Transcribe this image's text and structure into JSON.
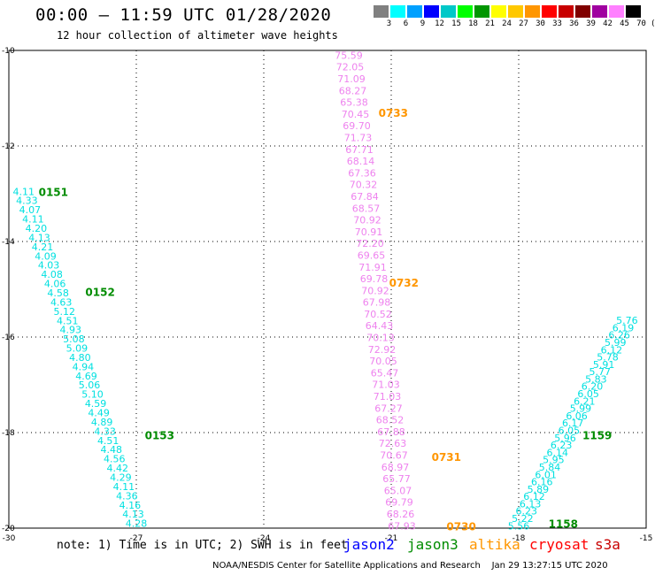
{
  "header": {
    "title": "00:00 – 11:59 UTC 01/28/2020",
    "subtitle": "12 hour collection of altimeter wave heights"
  },
  "legend": {
    "colors": [
      "#808080",
      "#00ffff",
      "#00a0ff",
      "#0000ff",
      "#00c8c8",
      "#00ff00",
      "#009600",
      "#ffff00",
      "#ffc800",
      "#ff9600",
      "#ff0000",
      "#c80000",
      "#800000",
      "#a000a0",
      "#ff80ff",
      "#000000"
    ],
    "labels": [
      "3",
      "6",
      "9",
      "12",
      "15",
      "18",
      "21",
      "24",
      "27",
      "30",
      "33",
      "36",
      "39",
      "42",
      "45",
      "70",
      "(ft)"
    ]
  },
  "footer": {
    "note": "note: 1) Time is in UTC; 2) SWH is in feet",
    "satellites": [
      {
        "name": "jason2",
        "color": "#0000ff"
      },
      {
        "name": "jason3",
        "color": "#008c00"
      },
      {
        "name": "altika",
        "color": "#ff9600"
      },
      {
        "name": "cryosat",
        "color": "#ff0000"
      },
      {
        "name": "s3a",
        "color": "#c80000"
      }
    ],
    "credit": "NOAA/NESDIS Center for Satellite Applications and Research    Jan 29 13:27:15 UTC 2020"
  },
  "chart_data": {
    "type": "scatter",
    "x_ticks": [
      "-30",
      "-27",
      "-24",
      "-21",
      "-18",
      "-15"
    ],
    "y_ticks": [
      "-10",
      "-12",
      "-14",
      "-16",
      "-18",
      "-20"
    ],
    "xlim": [
      -30,
      -15
    ],
    "ylim": [
      -20,
      -10
    ],
    "grid": true,
    "series": [
      {
        "name": "altika",
        "label_color": "#ee82ee",
        "start": [
          -22.0,
          -10.1
        ],
        "end": [
          -20.75,
          -19.95
        ],
        "values": [
          "75.59",
          "72.05",
          "71.09",
          "68.27",
          "65.38",
          "70.45",
          "69.70",
          "71.73",
          "67.71",
          "68.14",
          "67.36",
          "70.32",
          "67.84",
          "68.57",
          "70.92",
          "70.91",
          "72.20",
          "69.65",
          "71.91",
          "69.78",
          "70.92",
          "67.98",
          "70.52",
          "64.43",
          "70.13",
          "72.92",
          "70.05",
          "65.47",
          "71.03",
          "71.03",
          "67.27",
          "68.52",
          "67.88",
          "72.63",
          "70.67",
          "68.97",
          "65.77",
          "65.07",
          "69.79",
          "68.26",
          "67.93"
        ],
        "time_tags": [
          {
            "text": "0733",
            "lon": -21.3,
            "lat": -11.3
          },
          {
            "text": "0732",
            "lon": -21.05,
            "lat": -14.85
          },
          {
            "text": "0731",
            "lon": -20.05,
            "lat": -18.5
          },
          {
            "text": "0730",
            "lon": -19.7,
            "lat": -19.95
          }
        ],
        "time_color": "#ff9600"
      },
      {
        "name": "jason3",
        "label_color": "#00e0e0",
        "start": [
          -29.65,
          -12.95
        ],
        "end": [
          -27.0,
          -19.9
        ],
        "values": [
          "4.11",
          "4.33",
          "4.07",
          "4.11",
          "4.20",
          "4.13",
          "4.21",
          "4.09",
          "4.03",
          "4.08",
          "4.06",
          "4.58",
          "4.63",
          "5.12",
          "4.51",
          "4.93",
          "5.08",
          "5.09",
          "4.80",
          "4.94",
          "4.69",
          "5.06",
          "5.10",
          "4.59",
          "4.49",
          "4.89",
          "4.33",
          "4.51",
          "4.48",
          "4.56",
          "4.42",
          "4.29",
          "4.11",
          "4.36",
          "4.16",
          "4.13",
          "4.28"
        ],
        "time_tags": [
          {
            "text": "0151",
            "lon": -29.3,
            "lat": -12.95
          },
          {
            "text": "0152",
            "lon": -28.2,
            "lat": -15.05
          },
          {
            "text": "0153",
            "lon": -26.8,
            "lat": -18.05
          }
        ],
        "time_color": "#008c00"
      },
      {
        "name": "jason3",
        "label_color": "#00e0e0",
        "start": [
          -18.0,
          -19.95
        ],
        "end": [
          -15.45,
          -15.65
        ],
        "values": [
          "5.56",
          "5.22",
          "6.23",
          "6.13",
          "6.12",
          "5.89",
          "6.16",
          "6.01",
          "5.84",
          "5.95",
          "6.14",
          "6.23",
          "5.96",
          "6.05",
          "6.17",
          "6.06",
          "5.99",
          "6.21",
          "6.05",
          "6.20",
          "5.83",
          "5.77",
          "5.91",
          "5.78",
          "6.12",
          "5.99",
          "6.26",
          "6.19",
          "5.76"
        ],
        "time_tags": [
          {
            "text": "1159",
            "lon": -16.5,
            "lat": -18.05
          },
          {
            "text": "1158",
            "lon": -17.3,
            "lat": -19.9
          }
        ],
        "time_color": "#008c00"
      }
    ]
  }
}
